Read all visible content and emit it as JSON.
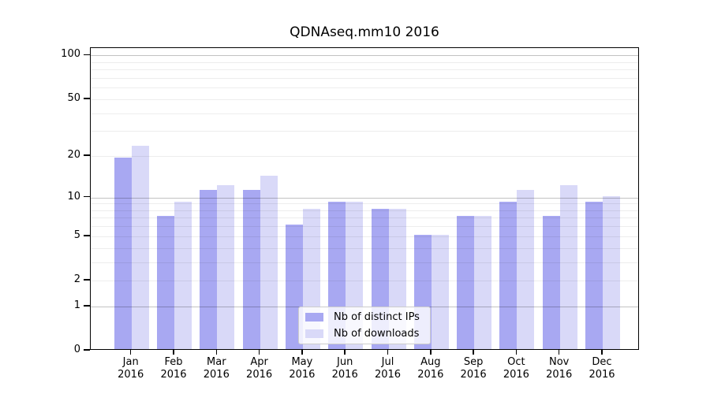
{
  "title": "QDNAseq.mm10 2016",
  "chart_data": {
    "type": "bar",
    "title": "QDNAseq.mm10 2016",
    "categories": [
      "Jan",
      "Feb",
      "Mar",
      "Apr",
      "May",
      "Jun",
      "Jul",
      "Aug",
      "Sep",
      "Oct",
      "Nov",
      "Dec"
    ],
    "category_year": "2016",
    "series": [
      {
        "name": "Nb of distinct IPs",
        "color": "#a8a8f2",
        "values": [
          19,
          7,
          11,
          11,
          6,
          9,
          8,
          5,
          7,
          9,
          7,
          9
        ]
      },
      {
        "name": "Nb of downloads",
        "color": "#d9d9f8",
        "values": [
          23,
          9,
          12,
          14,
          8,
          9,
          8,
          5,
          7,
          11,
          12,
          10
        ]
      }
    ],
    "xlabel": "",
    "ylabel": "",
    "yscale": "log1p",
    "ylim": [
      0,
      113
    ],
    "yticks": [
      0,
      1,
      2,
      5,
      10,
      20,
      50,
      100
    ],
    "major_gridlines": [
      1,
      10,
      100
    ],
    "minor_gridlines": [
      3,
      4,
      6,
      7,
      8,
      9,
      30,
      40,
      60,
      70,
      80,
      90
    ],
    "labeled_minor_gridlines": [
      2,
      5,
      20,
      50
    ],
    "grid": true,
    "legend_position": "lower center"
  }
}
